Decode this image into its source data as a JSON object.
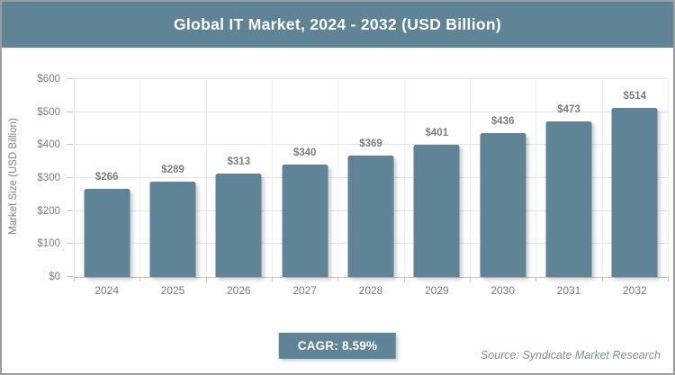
{
  "header": {
    "title": "Global IT Market, 2024 - 2032 (USD Billion)"
  },
  "chart_data": {
    "type": "bar",
    "title": "Global IT Market, 2024 - 2032 (USD Billion)",
    "categories": [
      "2024",
      "2025",
      "2026",
      "2027",
      "2028",
      "2029",
      "2030",
      "2031",
      "2032"
    ],
    "values": [
      266,
      289,
      313,
      340,
      369,
      401,
      436,
      473,
      514
    ],
    "value_labels": [
      "$266",
      "$289",
      "$313",
      "$340",
      "$369",
      "$401",
      "$436",
      "$473",
      "$514"
    ],
    "xlabel": "",
    "ylabel": "Market Size (USD Billion)",
    "ylim": [
      0,
      600
    ],
    "ytick_step": 100,
    "ytick_labels": [
      "$0",
      "$100",
      "$200",
      "$300",
      "$400",
      "$500",
      "$600"
    ],
    "grid": true,
    "legend": "none",
    "bar_color": "#5E8495"
  },
  "footer": {
    "cagr_label": "CAGR: 8.59%",
    "source": "Source: Syndicate Market Research"
  },
  "colors": {
    "accent": "#5E8495",
    "header_text": "#ffffff",
    "grid_line": "#e4e4e4",
    "axis_line": "#c6c6c6",
    "label_gray": "#7b7d80",
    "tick_text": "#77797b",
    "source_text": "#7E8E96",
    "frame_border": "#9c9c9c"
  }
}
